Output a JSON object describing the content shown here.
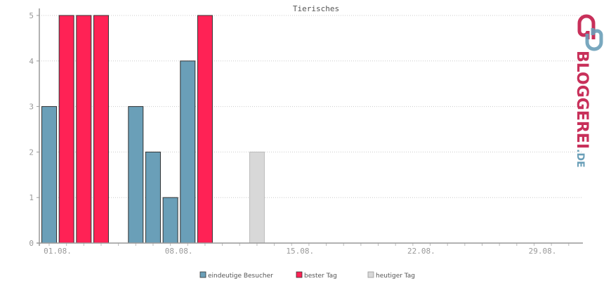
{
  "chart_data": {
    "type": "bar",
    "title": "Tierisches",
    "ylim": [
      0,
      5
    ],
    "yticks": [
      "0",
      "1",
      "2",
      "3",
      "4",
      "5"
    ],
    "x_tick_labels": [
      {
        "day": 1,
        "label": "01.08."
      },
      {
        "day": 8,
        "label": "08.08."
      },
      {
        "day": 15,
        "label": "15.08."
      },
      {
        "day": 22,
        "label": "22.08."
      },
      {
        "day": 29,
        "label": "29.08."
      }
    ],
    "days_in_month": 31,
    "grid": true,
    "legend_position": "bottom",
    "series": [
      {
        "name": "eindeutige Besucher",
        "color": "#6a9fb8"
      },
      {
        "name": "bester Tag",
        "color": "#ff2255"
      },
      {
        "name": "heutiger Tag",
        "color": "#d8d8d8"
      }
    ],
    "bars": [
      {
        "day": 1,
        "value": 3,
        "series": 0
      },
      {
        "day": 2,
        "value": 5,
        "series": 1
      },
      {
        "day": 3,
        "value": 5,
        "series": 1
      },
      {
        "day": 4,
        "value": 5,
        "series": 1
      },
      {
        "day": 6,
        "value": 3,
        "series": 0
      },
      {
        "day": 7,
        "value": 2,
        "series": 0
      },
      {
        "day": 8,
        "value": 1,
        "series": 0
      },
      {
        "day": 9,
        "value": 4,
        "series": 0
      },
      {
        "day": 10,
        "value": 5,
        "series": 1
      },
      {
        "day": 13,
        "value": 2,
        "series": 2
      }
    ]
  },
  "logo": {
    "brand": "BLOGGEREI",
    "suffix": ".DE",
    "colors": {
      "pink": "#c8305a",
      "blue": "#6a9fb8"
    }
  }
}
